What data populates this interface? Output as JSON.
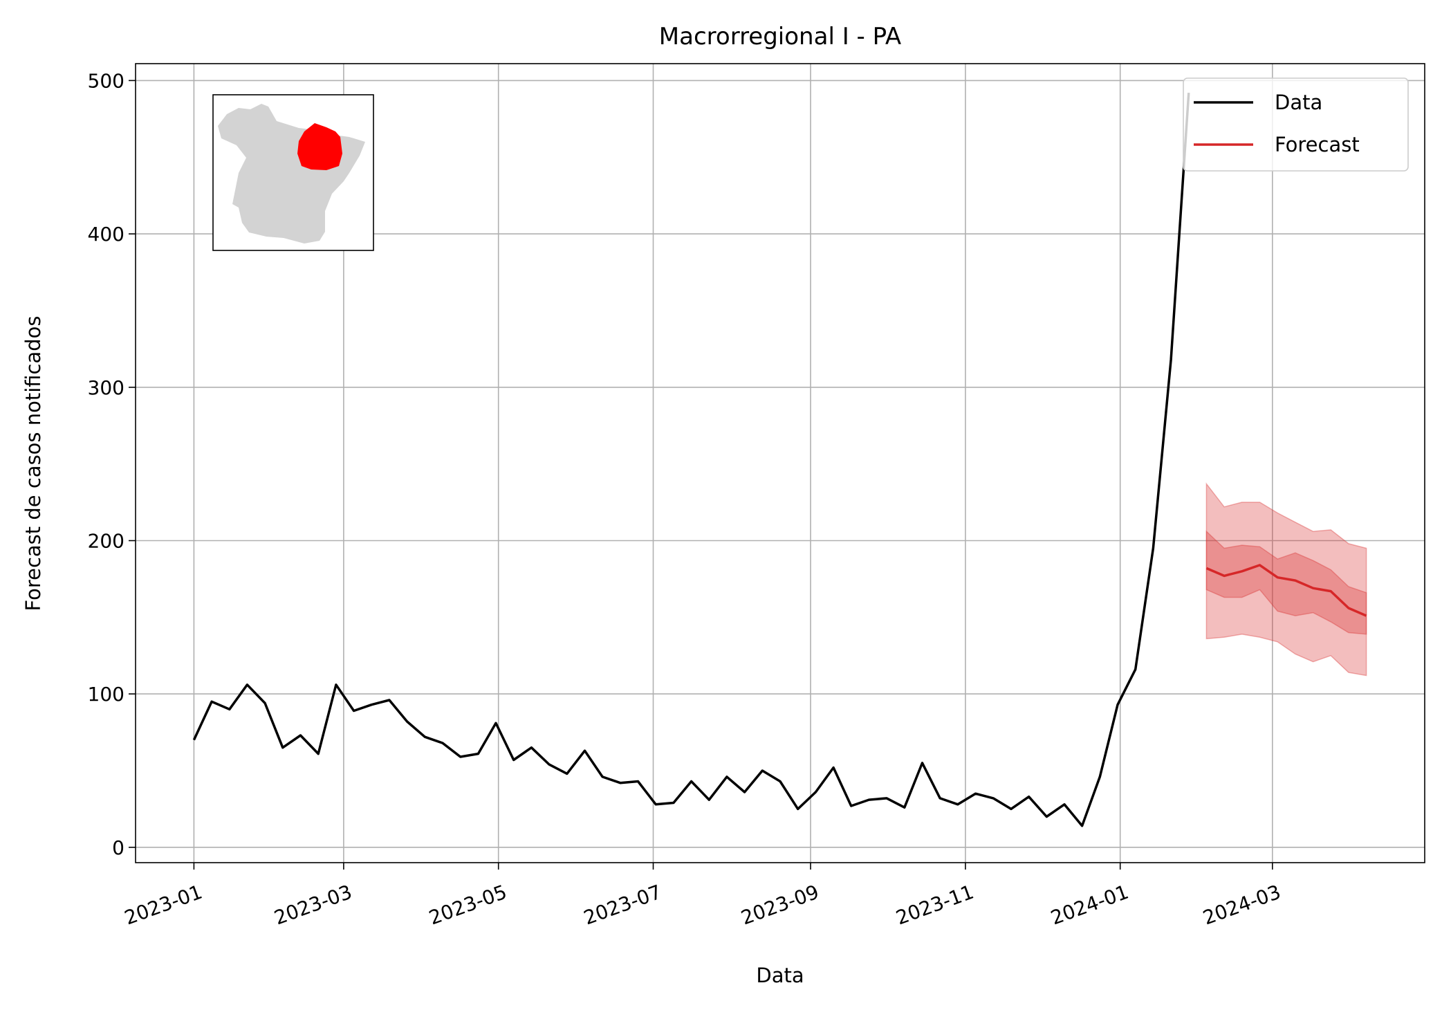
{
  "chart_data": {
    "type": "line",
    "title": "Macrorregional I - PA",
    "xlabel": "Data",
    "ylabel": "Forecast de casos notificados",
    "xlim": [
      "2022-12-09",
      "2024-04-30"
    ],
    "ylim": [
      -10,
      511
    ],
    "grid": true,
    "legend": {
      "placement": "top-right",
      "entries": [
        "Data",
        "Forecast"
      ]
    },
    "colors": {
      "data": "#000000",
      "forecast": "#d62728",
      "map_base": "#d3d3d3",
      "map_highlight": "#ff0000"
    },
    "x_ticks": [
      "2023-01",
      "2023-03",
      "2023-05",
      "2023-07",
      "2023-09",
      "2023-11",
      "2024-01",
      "2024-03"
    ],
    "y_ticks": [
      0,
      100,
      200,
      300,
      400,
      500
    ],
    "series": [
      {
        "name": "Data",
        "x": [
          "2023-01-01",
          "2023-01-08",
          "2023-01-15",
          "2023-01-22",
          "2023-01-29",
          "2023-02-05",
          "2023-02-12",
          "2023-02-19",
          "2023-02-26",
          "2023-03-05",
          "2023-03-12",
          "2023-03-19",
          "2023-03-26",
          "2023-04-02",
          "2023-04-09",
          "2023-04-16",
          "2023-04-23",
          "2023-04-30",
          "2023-05-07",
          "2023-05-14",
          "2023-05-21",
          "2023-05-28",
          "2023-06-04",
          "2023-06-11",
          "2023-06-18",
          "2023-06-25",
          "2023-07-02",
          "2023-07-09",
          "2023-07-16",
          "2023-07-23",
          "2023-07-30",
          "2023-08-06",
          "2023-08-13",
          "2023-08-20",
          "2023-08-27",
          "2023-09-03",
          "2023-09-10",
          "2023-09-17",
          "2023-09-24",
          "2023-10-01",
          "2023-10-08",
          "2023-10-15",
          "2023-10-22",
          "2023-10-29",
          "2023-11-05",
          "2023-11-12",
          "2023-11-19",
          "2023-11-26",
          "2023-12-03",
          "2023-12-10",
          "2023-12-17",
          "2023-12-24",
          "2023-12-31",
          "2024-01-07",
          "2024-01-14",
          "2024-01-21",
          "2024-01-28"
        ],
        "values": [
          70,
          95,
          90,
          106,
          94,
          65,
          73,
          61,
          106,
          89,
          93,
          96,
          82,
          72,
          68,
          59,
          61,
          81,
          57,
          65,
          54,
          48,
          63,
          46,
          42,
          43,
          28,
          29,
          43,
          31,
          46,
          36,
          50,
          43,
          25,
          36,
          52,
          27,
          31,
          32,
          26,
          55,
          32,
          28,
          35,
          32,
          25,
          33,
          20,
          28,
          14,
          46,
          93,
          116,
          195,
          318,
          492
        ]
      },
      {
        "name": "Forecast",
        "x": [
          "2024-02-04",
          "2024-02-11",
          "2024-02-18",
          "2024-02-25",
          "2024-03-03",
          "2024-03-10",
          "2024-03-17",
          "2024-03-24",
          "2024-03-31",
          "2024-04-07"
        ],
        "values": [
          182,
          177,
          180,
          184,
          176,
          174,
          169,
          167,
          156,
          151
        ],
        "lower_90": [
          136,
          137,
          139,
          137,
          134,
          126,
          121,
          125,
          114,
          112
        ],
        "upper_90": [
          237,
          222,
          225,
          225,
          218,
          212,
          206,
          207,
          198,
          195
        ],
        "lower_50": [
          168,
          163,
          163,
          168,
          154,
          151,
          153,
          147,
          140,
          139
        ],
        "upper_50": [
          206,
          195,
          197,
          196,
          188,
          192,
          187,
          181,
          170,
          166
        ]
      }
    ]
  }
}
